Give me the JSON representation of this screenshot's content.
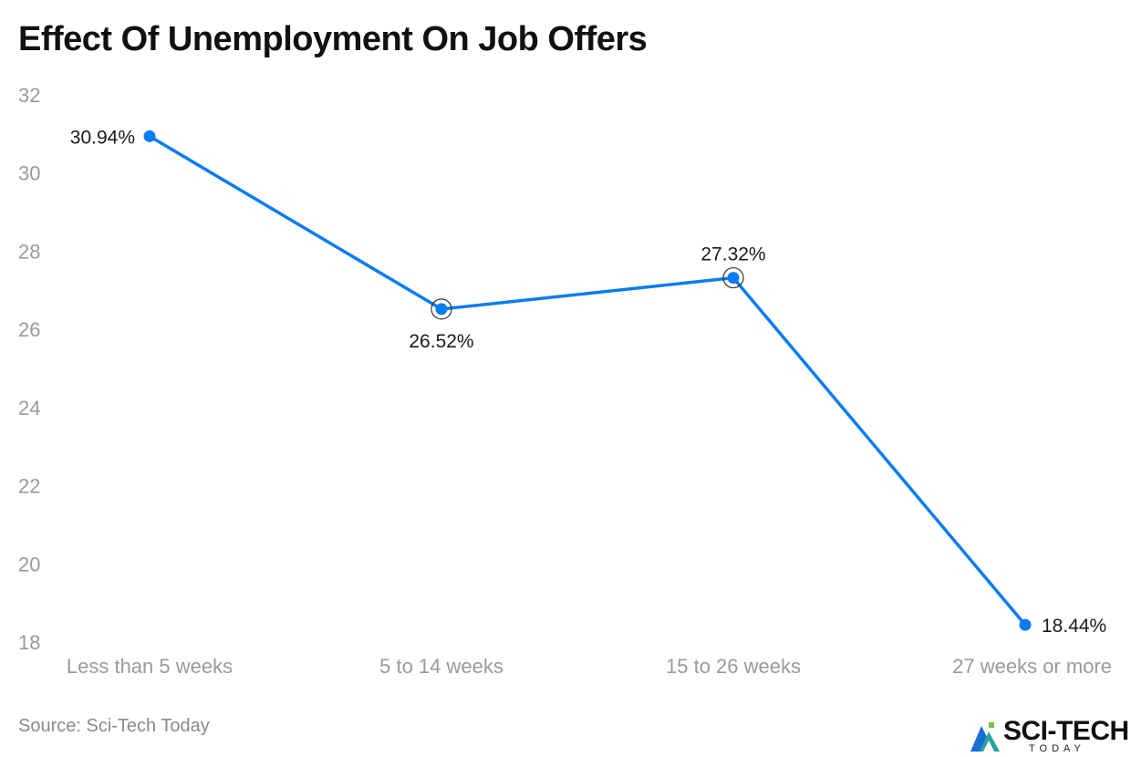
{
  "chart_data": {
    "type": "line",
    "title": "Effect Of Unemployment On Job Offers",
    "categories": [
      "Less than 5 weeks",
      "5 to 14 weeks",
      "15 to 26 weeks",
      "27 weeks or more"
    ],
    "values": [
      30.94,
      26.52,
      27.32,
      18.44
    ],
    "data_labels": [
      "30.94%",
      "26.52%",
      "27.32%",
      "18.44%"
    ],
    "label_positions": [
      "left",
      "below",
      "above",
      "right"
    ],
    "highlighted": [
      false,
      true,
      true,
      false
    ],
    "ylim": [
      18,
      32
    ],
    "yticks": [
      18,
      20,
      22,
      24,
      26,
      28,
      30,
      32
    ],
    "xlabel": "",
    "ylabel": "",
    "grid": false,
    "line_color": "#0a7cf2"
  },
  "footer": {
    "source": "Source: Sci-Tech Today",
    "logo_name": "SCI-TECH",
    "logo_sub": "TODAY",
    "logo_mark_icon": "sci-tech-mountain-icon",
    "colors": {
      "logo_blue": "#1b6fd1",
      "logo_teal": "#29a39a",
      "logo_green": "#7cc242"
    }
  }
}
